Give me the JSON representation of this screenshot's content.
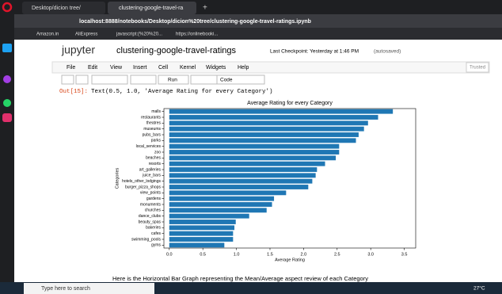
{
  "browser": {
    "tabs": [
      "Desktop/dicion tree/",
      "clustering-google-travel-ra"
    ],
    "url": "localhost:8888/notebooks/Desktop/dicion%20tree/clustering-google-travel-ratings.ipynb",
    "bookmarks": [
      "Amazon.in",
      "AliExpress",
      "javascript:(%20%20...",
      "https://onlinebooki..."
    ]
  },
  "notebook": {
    "logo": "jupyter",
    "name": "clustering-google-travel-ratings",
    "checkpoint": "Last Checkpoint: Yesterday at 1:46 PM",
    "autosaved": "(autosaved)",
    "menu": [
      "File",
      "Edit",
      "View",
      "Insert",
      "Cell",
      "Kernel",
      "Widgets",
      "Help"
    ],
    "trusted": "Trusted",
    "run": "Run",
    "cell_type": "Code",
    "out_prompt": "Out[15]:",
    "out_text": "Text(0.5, 1.0, 'Average Rating for every Category')",
    "caption": "Here is the Horizontal Bar Graph representing the Mean/Average aspect review of each Category"
  },
  "taskbar": {
    "search": "Type here to search",
    "weather": "27°C"
  },
  "chart_data": {
    "type": "barh",
    "title": "Average Rating for every Category",
    "xlabel": "Average Rating",
    "ylabel": "Categories",
    "categories": [
      "malls",
      "restaurants",
      "theatres",
      "museums",
      "pubs_bars",
      "parks",
      "local_services",
      "zoo",
      "beaches",
      "resorts",
      "art_galleries",
      "juice_bars",
      "hotels_other_lodgings",
      "burger_pizza_shops",
      "view_points",
      "gardens",
      "monuments",
      "churches",
      "dance_clubs",
      "beauty_spas",
      "bakeries",
      "cafes",
      "swimming_pools",
      "gyms"
    ],
    "values": [
      3.33,
      3.11,
      2.96,
      2.9,
      2.82,
      2.78,
      2.53,
      2.53,
      2.48,
      2.32,
      2.2,
      2.18,
      2.13,
      2.07,
      1.74,
      1.56,
      1.53,
      1.45,
      1.19,
      0.99,
      0.97,
      0.95,
      0.95,
      0.82
    ],
    "color": "#1f77b4",
    "xlim": [
      -0.08,
      3.67
    ],
    "xticks": [
      {
        "value": 0,
        "label": "0.0"
      },
      0.5,
      {
        "value": 1,
        "label": "1.0"
      },
      1.5,
      {
        "value": 2,
        "label": "2.0"
      },
      2.5,
      {
        "value": 3,
        "label": "3.0"
      },
      3.5
    ]
  }
}
